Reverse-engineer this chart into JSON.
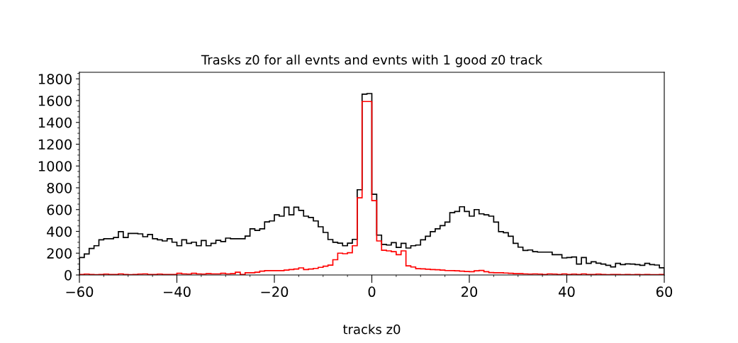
{
  "chart_data": {
    "type": "histogram",
    "title": "Trasks z0 for all evnts and evnts with 1 good z0 track",
    "xlabel": "tracks z0",
    "bins": [
      -60,
      -59,
      -58,
      -57,
      -56,
      -55,
      -54,
      -53,
      -52,
      -51,
      -50,
      -49,
      -48,
      -47,
      -46,
      -45,
      -44,
      -43,
      -42,
      -41,
      -40,
      -39,
      -38,
      -37,
      -36,
      -35,
      -34,
      -33,
      -32,
      -31,
      -30,
      -29,
      -28,
      -27,
      -26,
      -25,
      -24,
      -23,
      -22,
      -21,
      -20,
      -19,
      -18,
      -17,
      -16,
      -15,
      -14,
      -13,
      -12,
      -11,
      -10,
      -9,
      -8,
      -7,
      -6,
      -5,
      -4,
      -3,
      -2,
      -1,
      0,
      1,
      2,
      3,
      4,
      5,
      6,
      7,
      8,
      9,
      10,
      11,
      12,
      13,
      14,
      15,
      16,
      17,
      18,
      19,
      20,
      21,
      22,
      23,
      24,
      25,
      26,
      27,
      28,
      29,
      30,
      31,
      32,
      33,
      34,
      35,
      36,
      37,
      38,
      39,
      40,
      41,
      42,
      43,
      44,
      45,
      46,
      47,
      48,
      49,
      50,
      51,
      52,
      53,
      54,
      55,
      56,
      57,
      58,
      59,
      60
    ],
    "series": [
      {
        "color": "#000000",
        "values": [
          160,
          193,
          243,
          268,
          323,
          333,
          333,
          344,
          398,
          344,
          381,
          381,
          377,
          351,
          372,
          333,
          323,
          312,
          333,
          301,
          268,
          323,
          290,
          301,
          268,
          316,
          268,
          290,
          318,
          307,
          338,
          333,
          333,
          333,
          357,
          424,
          409,
          424,
          487,
          496,
          552,
          540,
          622,
          552,
          622,
          593,
          540,
          528,
          496,
          442,
          390,
          325,
          300,
          292,
          268,
          292,
          327,
          782,
          1659,
          1665,
          741,
          366,
          280,
          275,
          297,
          253,
          290,
          247,
          268,
          275,
          323,
          355,
          398,
          424,
          453,
          485,
          572,
          583,
          626,
          583,
          540,
          600,
          561,
          552,
          540,
          485,
          398,
          388,
          355,
          290,
          255,
          225,
          229,
          214,
          210,
          210,
          210,
          186,
          186,
          156,
          160,
          165,
          100,
          160,
          106,
          121,
          108,
          100,
          89,
          74,
          106,
          95,
          102,
          100,
          95,
          89,
          106,
          95,
          91,
          66
        ]
      },
      {
        "color": "#ff0000",
        "values": [
          5,
          8,
          5,
          3,
          5,
          8,
          5,
          5,
          10,
          5,
          3,
          5,
          8,
          10,
          5,
          5,
          8,
          5,
          5,
          5,
          15,
          10,
          8,
          15,
          10,
          8,
          12,
          10,
          10,
          15,
          10,
          12,
          25,
          5,
          20,
          20,
          25,
          35,
          40,
          40,
          40,
          40,
          45,
          50,
          55,
          65,
          50,
          55,
          60,
          70,
          80,
          90,
          140,
          200,
          195,
          204,
          268,
          708,
          1592,
          1592,
          682,
          312,
          227,
          221,
          214,
          186,
          221,
          84,
          73,
          58,
          56,
          53,
          50,
          48,
          45,
          41,
          40,
          38,
          35,
          32,
          30,
          38,
          41,
          30,
          22,
          20,
          20,
          18,
          15,
          12,
          12,
          10,
          8,
          10,
          8,
          5,
          10,
          8,
          5,
          10,
          5,
          8,
          5,
          10,
          5,
          5,
          8,
          5,
          3,
          5,
          5,
          3,
          5,
          3,
          5,
          3,
          5,
          3,
          3,
          5
        ]
      }
    ],
    "xlim": [
      -60,
      60
    ],
    "xticks": [
      -60,
      -40,
      -20,
      0,
      20,
      40,
      60
    ],
    "ylim": [
      0,
      1860
    ],
    "yticks": [
      0,
      200,
      400,
      600,
      800,
      1000,
      1200,
      1400,
      1600,
      1800
    ],
    "grid": false
  }
}
